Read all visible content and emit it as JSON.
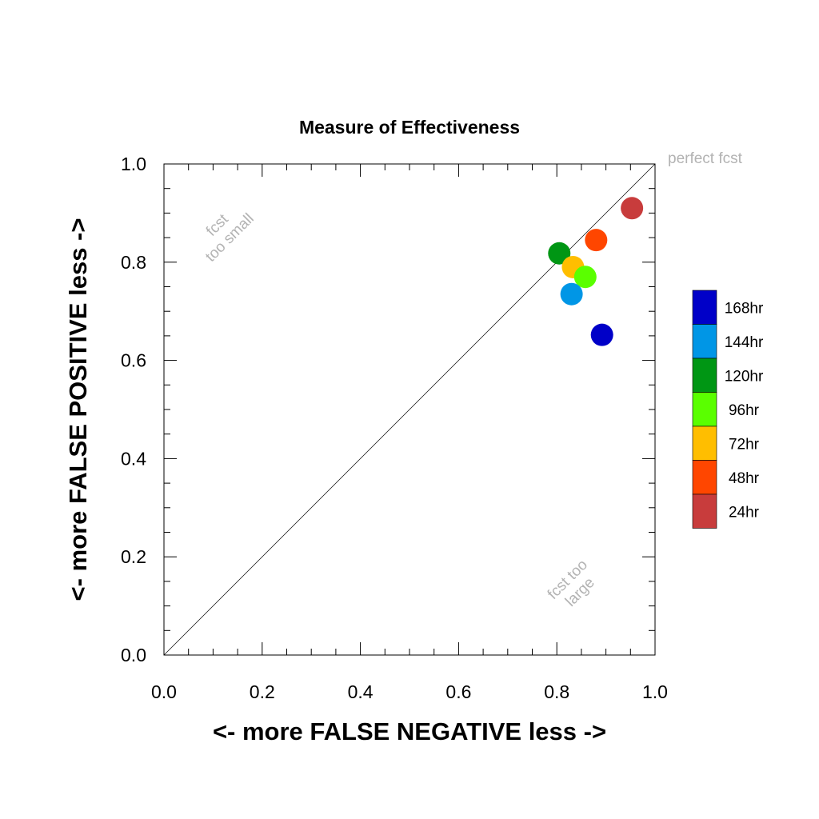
{
  "chart_data": {
    "type": "scatter",
    "title": "Measure of Effectiveness",
    "xlabel": "<- more   FALSE NEGATIVE   less ->",
    "ylabel": "<- more   FALSE POSITIVE   less ->",
    "xlim": [
      0,
      1
    ],
    "ylim": [
      0,
      1
    ],
    "x_ticks": [
      "0.0",
      "0.2",
      "0.4",
      "0.6",
      "0.8",
      "1.0"
    ],
    "y_ticks": [
      "0.0",
      "0.2",
      "0.4",
      "0.6",
      "0.8",
      "1.0"
    ],
    "grid": false,
    "diagonal_line": true,
    "annotations": {
      "perfect": "perfect fcst",
      "small_line1": "fcst",
      "small_line2": "too small",
      "large_line1": "fcst too",
      "large_line2": "large"
    },
    "legend_position": "right",
    "series": [
      {
        "name": "168hr",
        "color": "#0000c8",
        "x": 0.892,
        "y": 0.652
      },
      {
        "name": "144hr",
        "color": "#0096e6",
        "x": 0.83,
        "y": 0.735
      },
      {
        "name": "120hr",
        "color": "#009614",
        "x": 0.805,
        "y": 0.818
      },
      {
        "name": "96hr",
        "color": "#5aff00",
        "x": 0.858,
        "y": 0.77
      },
      {
        "name": "72hr",
        "color": "#ffbe00",
        "x": 0.833,
        "y": 0.79
      },
      {
        "name": "48hr",
        "color": "#ff4600",
        "x": 0.88,
        "y": 0.845
      },
      {
        "name": "24hr",
        "color": "#c83c3c",
        "x": 0.953,
        "y": 0.91
      }
    ]
  }
}
